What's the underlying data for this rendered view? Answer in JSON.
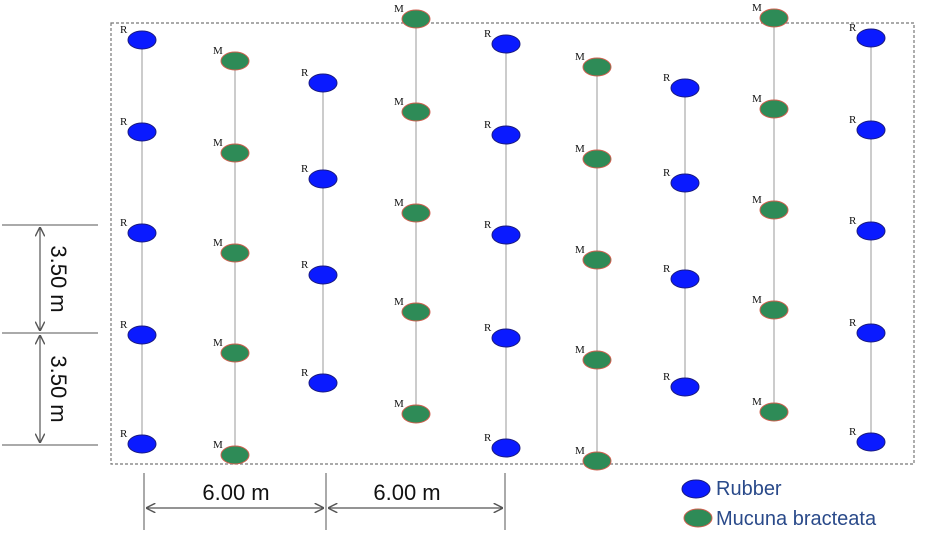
{
  "colors": {
    "rubber": "#0a1aff",
    "rubber_stroke": "#1a1a80",
    "mucuna": "#2e8b57",
    "mucuna_stroke": "#d06050",
    "row_line": "#aaaaaa",
    "field_border": "#777777",
    "legend_text": "#2a4a8a"
  },
  "marker_labels": {
    "rubber": "R",
    "mucuna": "M"
  },
  "dimensions": {
    "vertical_spacing": "3.50 m",
    "horizontal_spacing": "6.00 m"
  },
  "legend": {
    "rubber": "Rubber",
    "mucuna": "Mucuna bracteata"
  },
  "rows": [
    {
      "species": "rubber",
      "plants": 5
    },
    {
      "species": "mucuna",
      "plants": 5
    },
    {
      "species": "rubber",
      "plants": 4
    },
    {
      "species": "mucuna",
      "plants": 5
    },
    {
      "species": "rubber",
      "plants": 5
    },
    {
      "species": "mucuna",
      "plants": 5
    },
    {
      "species": "rubber",
      "plants": 4
    },
    {
      "species": "mucuna",
      "plants": 5
    },
    {
      "species": "rubber",
      "plants": 5
    }
  ]
}
